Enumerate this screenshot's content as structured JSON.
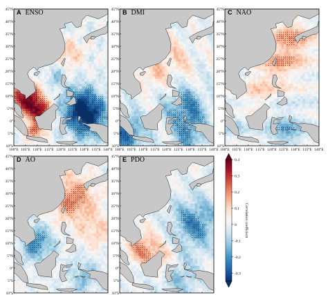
{
  "panels": [
    {
      "letter": "A",
      "name": "ENSO",
      "pattern": "enso"
    },
    {
      "letter": "B",
      "name": "DMI",
      "pattern": "dmi"
    },
    {
      "letter": "C",
      "name": "NAO",
      "pattern": "nao"
    },
    {
      "letter": "D",
      "name": "AO",
      "pattern": "ao"
    },
    {
      "letter": "E",
      "name": "PDO",
      "pattern": "pdo"
    }
  ],
  "lat_labels": [
    "45°N",
    "40°N",
    "35°N",
    "30°N",
    "25°N",
    "20°N",
    "15°N",
    "10°N",
    "5°N",
    "0°",
    "5°S",
    "10°S"
  ],
  "lon_labels": [
    "100°E",
    "105°E",
    "110°E",
    "115°E",
    "120°E",
    "125°E",
    "130°E",
    "135°E",
    "140°E"
  ],
  "colorbar": {
    "title": "Correlation coefficient",
    "ticks": [
      "0.4",
      "0.3",
      "0.2",
      "0.1",
      "0",
      "-0.1",
      "-0.2",
      "-0.3"
    ],
    "vmin": -0.35,
    "vmax": 0.4,
    "colors": [
      "#08306b",
      "#2166ac",
      "#4393c3",
      "#92c5de",
      "#d1e5f0",
      "#f7f7f7",
      "#fddbc7",
      "#f4a582",
      "#d6604d",
      "#b2182b",
      "#67001f"
    ]
  },
  "map_colors": {
    "land": "#c8c8c8",
    "coast": "#222222"
  }
}
